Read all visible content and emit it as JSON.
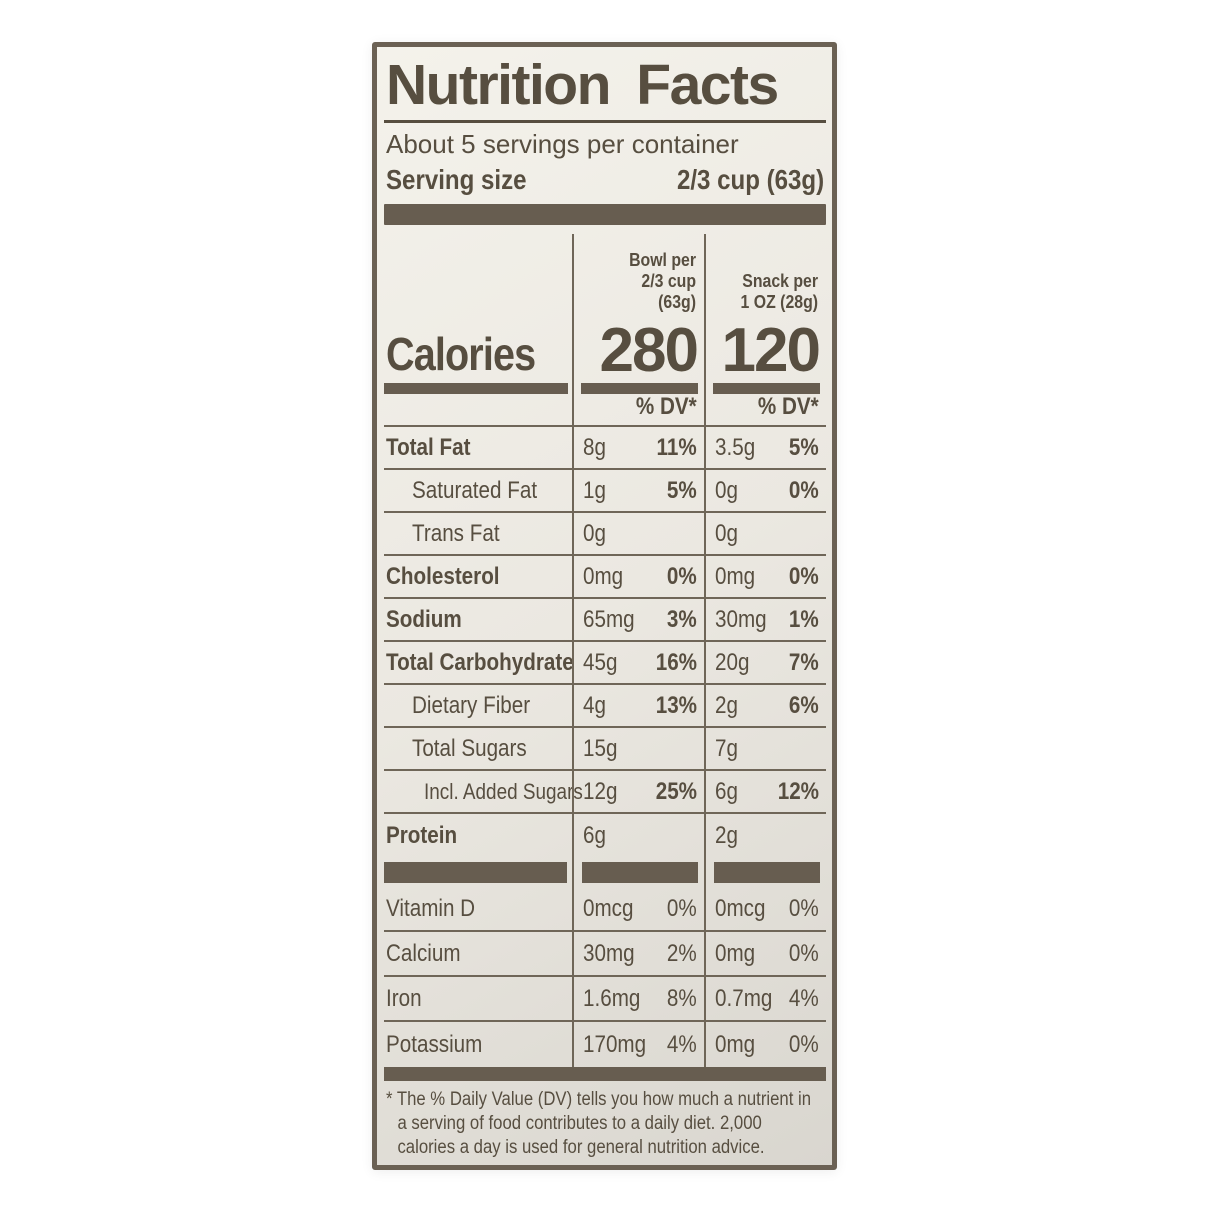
{
  "colors": {
    "ink": "#574e40",
    "thick_bar": "#675d50",
    "rule": "#6f6658",
    "panel_background": "#ebe8e1"
  },
  "label": {
    "title": "Nutrition Facts",
    "servings_per_container": "About 5 servings per container",
    "serving_size_label": "Serving size",
    "serving_size_value": "2/3 cup (63g)",
    "calories_label": "Calories",
    "dv_header": "% DV*",
    "col_bowl": {
      "line1": "Bowl per",
      "line2": "2/3 cup",
      "line3": "(63g)",
      "calories": "280"
    },
    "col_snack": {
      "line1": "Snack per",
      "line2": "1 OZ (28g)",
      "calories": "120"
    },
    "nutrients": [
      {
        "name": "Total Fat",
        "bowl_amt": "8g",
        "bowl_dv": "11%",
        "snack_amt": "3.5g",
        "snack_dv": "5%"
      },
      {
        "name": "Saturated Fat",
        "bowl_amt": "1g",
        "bowl_dv": "5%",
        "snack_amt": "0g",
        "snack_dv": "0%"
      },
      {
        "name": "Trans Fat",
        "bowl_amt": "0g",
        "bowl_dv": "",
        "snack_amt": "0g",
        "snack_dv": ""
      },
      {
        "name": "Cholesterol",
        "bowl_amt": "0mg",
        "bowl_dv": "0%",
        "snack_amt": "0mg",
        "snack_dv": "0%"
      },
      {
        "name": "Sodium",
        "bowl_amt": "65mg",
        "bowl_dv": "3%",
        "snack_amt": "30mg",
        "snack_dv": "1%"
      },
      {
        "name": "Total Carbohydrate",
        "bowl_amt": "45g",
        "bowl_dv": "16%",
        "snack_amt": "20g",
        "snack_dv": "7%"
      },
      {
        "name": "Dietary Fiber",
        "bowl_amt": "4g",
        "bowl_dv": "13%",
        "snack_amt": "2g",
        "snack_dv": "6%"
      },
      {
        "name": "Total Sugars",
        "bowl_amt": "15g",
        "bowl_dv": "",
        "snack_amt": "7g",
        "snack_dv": ""
      },
      {
        "name": "Incl. Added Sugars",
        "bowl_amt": "12g",
        "bowl_dv": "25%",
        "snack_amt": "6g",
        "snack_dv": "12%"
      },
      {
        "name": "Protein",
        "bowl_amt": "6g",
        "bowl_dv": "",
        "snack_amt": "2g",
        "snack_dv": ""
      }
    ],
    "vitamins": [
      {
        "name": "Vitamin D",
        "bowl_amt": "0mcg",
        "bowl_dv": "0%",
        "snack_amt": "0mcg",
        "snack_dv": "0%"
      },
      {
        "name": "Calcium",
        "bowl_amt": "30mg",
        "bowl_dv": "2%",
        "snack_amt": "0mg",
        "snack_dv": "0%"
      },
      {
        "name": "Iron",
        "bowl_amt": "1.6mg",
        "bowl_dv": "8%",
        "snack_amt": "0.7mg",
        "snack_dv": "4%"
      },
      {
        "name": "Potassium",
        "bowl_amt": "170mg",
        "bowl_dv": "4%",
        "snack_amt": "0mg",
        "snack_dv": "0%"
      }
    ],
    "footnote": "* The % Daily Value (DV) tells you how much a nutrient in a serving of food contributes to a daily diet. 2,000 calories a day is used for general nutrition advice."
  }
}
